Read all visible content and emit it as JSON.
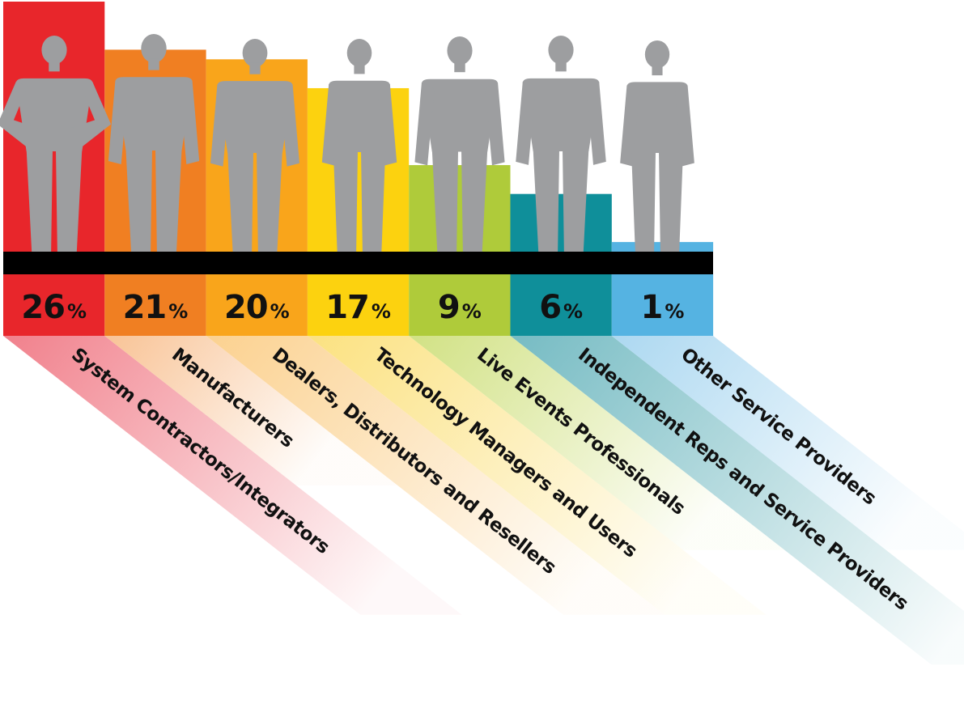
{
  "chart_data": {
    "type": "bar",
    "categories": [
      "System Contractors/Integrators",
      "Manufacturers",
      "Dealers, Distributors and Resellers",
      "Technology Managers and Users",
      "Live Events Professionals",
      "Independent Reps and Service Providers",
      "Other Service Providers"
    ],
    "values": [
      26,
      21,
      20,
      17,
      9,
      6,
      1
    ],
    "value_labels": [
      "26",
      "21",
      "20",
      "17",
      "9",
      "6",
      "1"
    ],
    "unit": "%",
    "ylim": [
      0,
      26
    ],
    "grid": false,
    "legend": "none",
    "colors": [
      "#e8262b",
      "#f07f22",
      "#f9a51b",
      "#fcd20f",
      "#afcb3a",
      "#0f8f9a",
      "#55b3e2"
    ],
    "label_colors": [
      "#f07a86",
      "#f8c090",
      "#fbcf8a",
      "#fbe07a",
      "#cfe07e",
      "#6fb8c0",
      "#a8d6f0"
    ],
    "silhouette_color": "#9d9ea0",
    "ground_color": "#000000"
  }
}
